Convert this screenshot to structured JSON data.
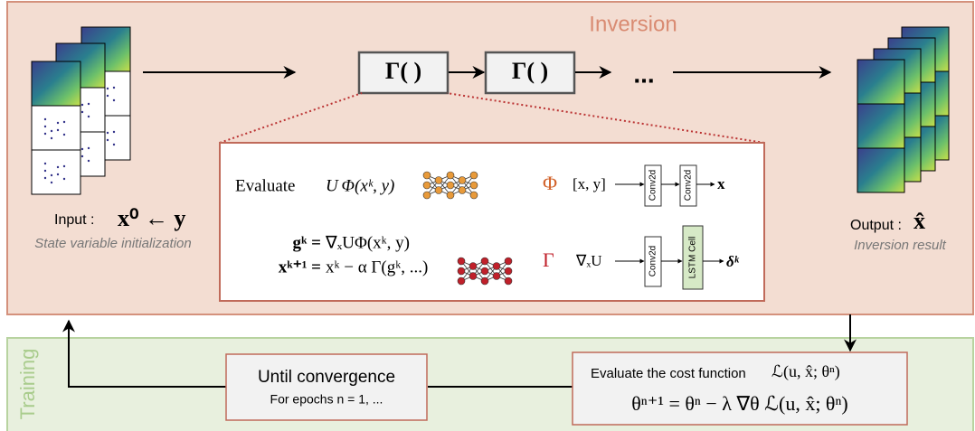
{
  "sections": {
    "inversion": "Inversion",
    "training": "Training"
  },
  "pipeline": {
    "operator_1": "Γ( )",
    "operator_2": "Γ( )",
    "ellipsis": "...",
    "input_label": "Input :",
    "input_formula": "x⁰ ← y",
    "input_caption": "State variable initialization",
    "output_label": "Output :",
    "output_formula": "x̂",
    "output_caption": "Inversion result"
  },
  "detail": {
    "evaluate_label": "Evaluate",
    "evaluate_formula": "U Φ(xᵏ, y)",
    "gradient_lhs": "gᵏ =",
    "gradient_rhs": "∇ₓUΦ(xᵏ, y)",
    "update_lhs": "xᵏ⁺¹ =",
    "update_rhs": "xᵏ − α Γ(gᵏ, ...)",
    "phi_symbol": "Φ",
    "phi_input": "[x, y]",
    "phi_layer_1": "Conv2d",
    "phi_layer_2": "Conv2d",
    "phi_output": "x",
    "gamma_symbol": "Γ",
    "gamma_input": "∇ₓU",
    "gamma_layer_1": "Conv2d",
    "gamma_layer_2": "LSTM Cell",
    "gamma_output": "δᵏ"
  },
  "training": {
    "loop_title": "Until convergence",
    "loop_subtitle": "For epochs  n = 1, ...",
    "cost_title": "Evaluate the cost function",
    "cost_formula": "ℒ(u, x̂; θⁿ)",
    "update_formula": "θⁿ⁺¹ = θⁿ − λ ∇θ ℒ(u, x̂; θⁿ)"
  }
}
